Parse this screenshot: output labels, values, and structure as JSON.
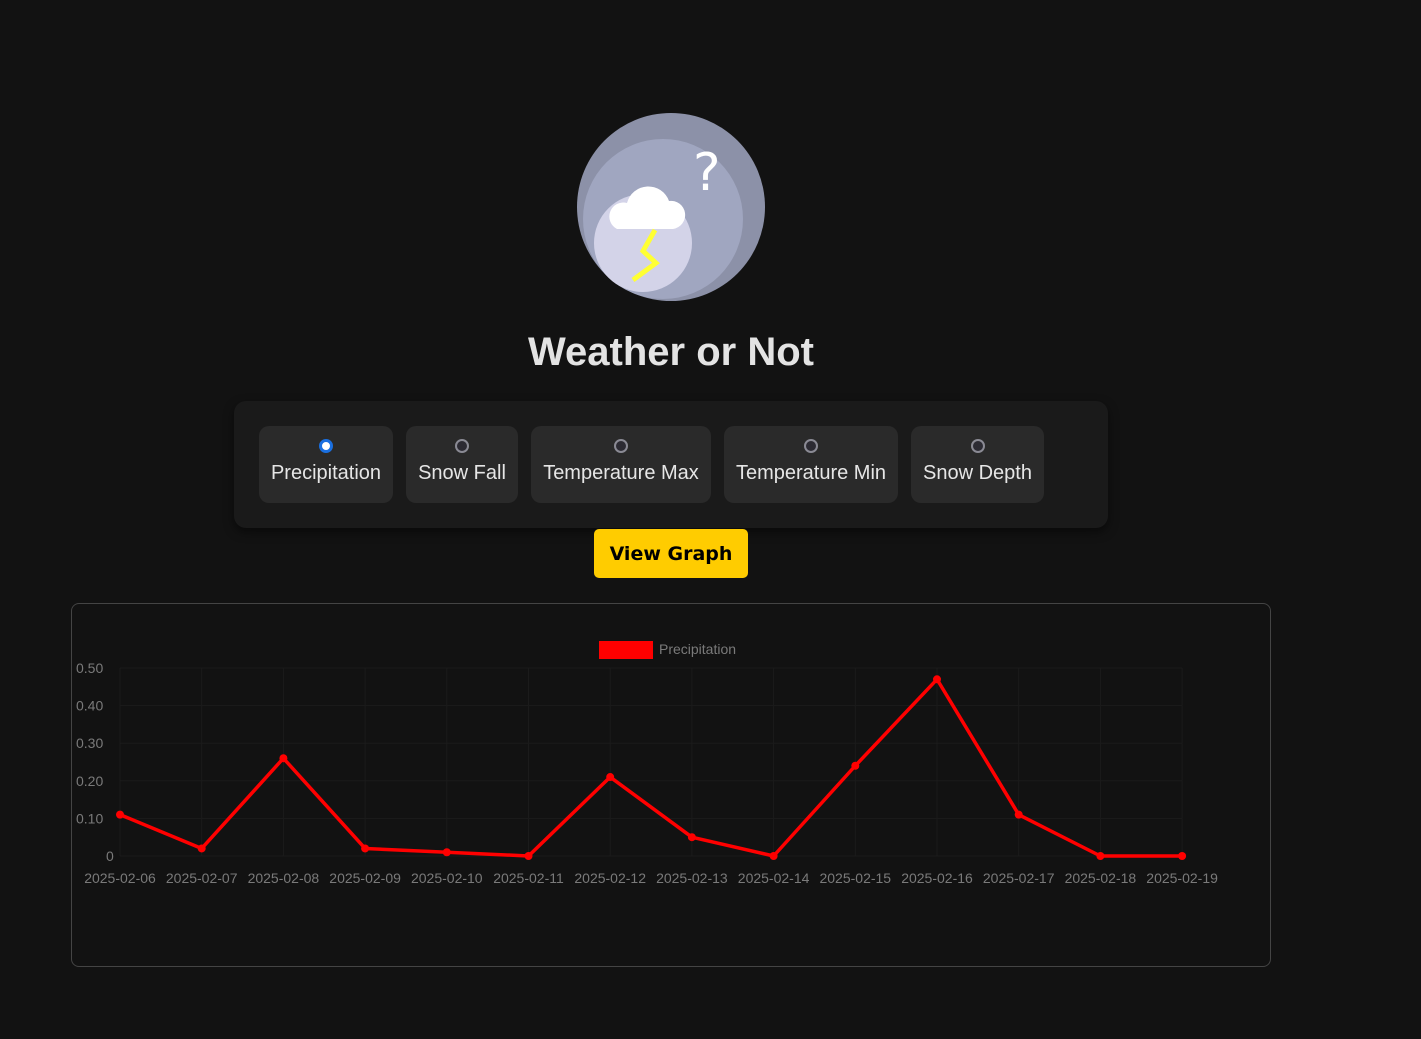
{
  "header": {
    "title": "Weather or Not",
    "logo_icon": "storm-cloud-question-icon"
  },
  "options": [
    {
      "label": "Precipitation",
      "selected": true
    },
    {
      "label": "Snow Fall",
      "selected": false
    },
    {
      "label": "Temperature Max",
      "selected": false
    },
    {
      "label": "Temperature Min",
      "selected": false
    },
    {
      "label": "Snow Depth",
      "selected": false
    }
  ],
  "view_button": "View Graph",
  "colors": {
    "accent": "#ffcc00",
    "series": "#ff0000",
    "radio_selected": "#1a6fe0",
    "background": "#121212"
  },
  "chart_data": {
    "type": "line",
    "legend_position": "top",
    "grid": true,
    "x": [
      "2025-02-06",
      "2025-02-07",
      "2025-02-08",
      "2025-02-09",
      "2025-02-10",
      "2025-02-11",
      "2025-02-12",
      "2025-02-13",
      "2025-02-14",
      "2025-02-15",
      "2025-02-16",
      "2025-02-17",
      "2025-02-18",
      "2025-02-19"
    ],
    "series": [
      {
        "name": "Precipitation",
        "color": "#ff0000",
        "values": [
          0.11,
          0.02,
          0.26,
          0.02,
          0.01,
          0,
          0.21,
          0.05,
          0,
          0.24,
          0.47,
          0.11,
          0,
          0
        ]
      }
    ],
    "ylim": [
      0,
      0.5
    ],
    "yticks": [
      "0",
      "0.10",
      "0.20",
      "0.30",
      "0.40",
      "0.50"
    ]
  }
}
